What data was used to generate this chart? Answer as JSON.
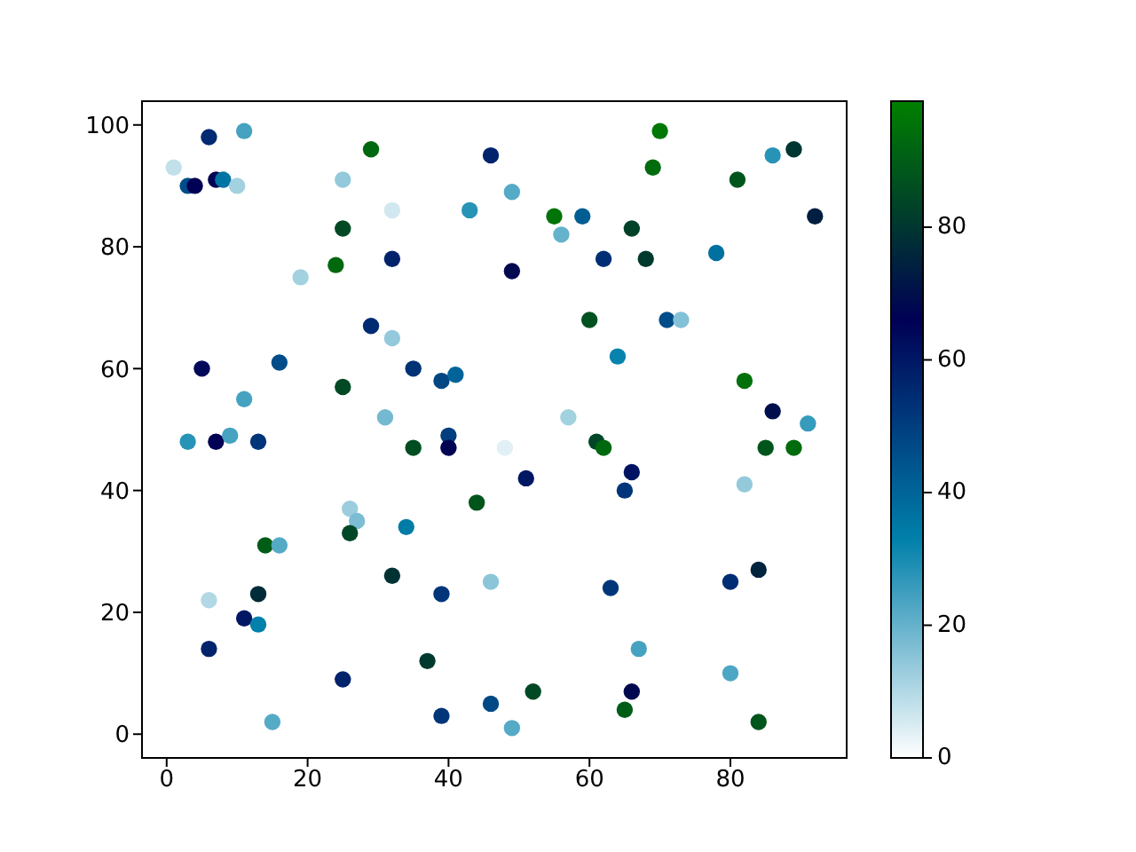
{
  "chart_data": {
    "type": "scatter",
    "x": [
      6,
      11,
      29,
      46,
      1,
      3,
      4,
      7,
      8,
      10,
      25,
      32,
      43,
      25,
      24,
      32,
      19,
      29,
      32,
      5,
      16,
      25,
      35,
      39,
      41,
      11,
      31,
      40,
      70,
      89,
      86,
      69,
      81,
      49,
      55,
      59,
      56,
      66,
      92,
      62,
      68,
      78,
      49,
      60,
      71,
      73,
      64,
      82,
      86,
      91,
      57,
      3,
      7,
      9,
      13,
      35,
      40,
      44,
      26,
      27,
      26,
      34,
      14,
      16,
      32,
      46,
      39,
      6,
      13,
      11,
      13,
      6,
      37,
      25,
      15,
      39,
      46,
      48,
      61,
      62,
      85,
      89,
      51,
      66,
      65,
      82,
      63,
      80,
      84,
      67,
      80,
      52,
      66,
      65,
      84,
      49
    ],
    "values": [
      98,
      99,
      96,
      95,
      93,
      90,
      90,
      91,
      91,
      90,
      91,
      86,
      86,
      83,
      77,
      78,
      75,
      67,
      65,
      60,
      61,
      57,
      60,
      58,
      59,
      55,
      52,
      49,
      99,
      96,
      95,
      93,
      91,
      89,
      85,
      85,
      82,
      83,
      85,
      78,
      78,
      79,
      76,
      68,
      68,
      68,
      62,
      58,
      53,
      51,
      52,
      48,
      48,
      49,
      48,
      47,
      47,
      38,
      37,
      35,
      33,
      34,
      31,
      31,
      26,
      25,
      23,
      22,
      23,
      19,
      18,
      14,
      12,
      9,
      2,
      3,
      5,
      47,
      48,
      47,
      47,
      47,
      42,
      43,
      40,
      41,
      24,
      25,
      27,
      14,
      10,
      7,
      7,
      4,
      2,
      1
    ],
    "cvalues": [
      55,
      24,
      93,
      57,
      8,
      46,
      66,
      67,
      36,
      12,
      14,
      6,
      28,
      85,
      93,
      57,
      12,
      55,
      14,
      64,
      46,
      85,
      53,
      48,
      40,
      24,
      18,
      50,
      97,
      80,
      28,
      94,
      88,
      22,
      96,
      42,
      20,
      83,
      74,
      54,
      81,
      37,
      68,
      87,
      46,
      16,
      32,
      95,
      70,
      26,
      12,
      28,
      66,
      24,
      52,
      86,
      67,
      88,
      13,
      17,
      84,
      34,
      90,
      22,
      79,
      15,
      52,
      10,
      77,
      60,
      33,
      57,
      81,
      57,
      22,
      52,
      47,
      4,
      84,
      93,
      88,
      94,
      60,
      61,
      52,
      14,
      52,
      54,
      75,
      24,
      23,
      85,
      68,
      90,
      88,
      22
    ],
    "clim": [
      0,
      99
    ],
    "cticks": [
      0,
      20,
      40,
      60,
      80
    ],
    "xlim": [
      -3.5,
      96.5
    ],
    "ylim": [
      -3.9,
      103.9
    ],
    "xticks": [
      0,
      20,
      40,
      60,
      80
    ],
    "yticks": [
      0,
      20,
      40,
      60,
      80,
      100
    ],
    "marker": "circle"
  }
}
